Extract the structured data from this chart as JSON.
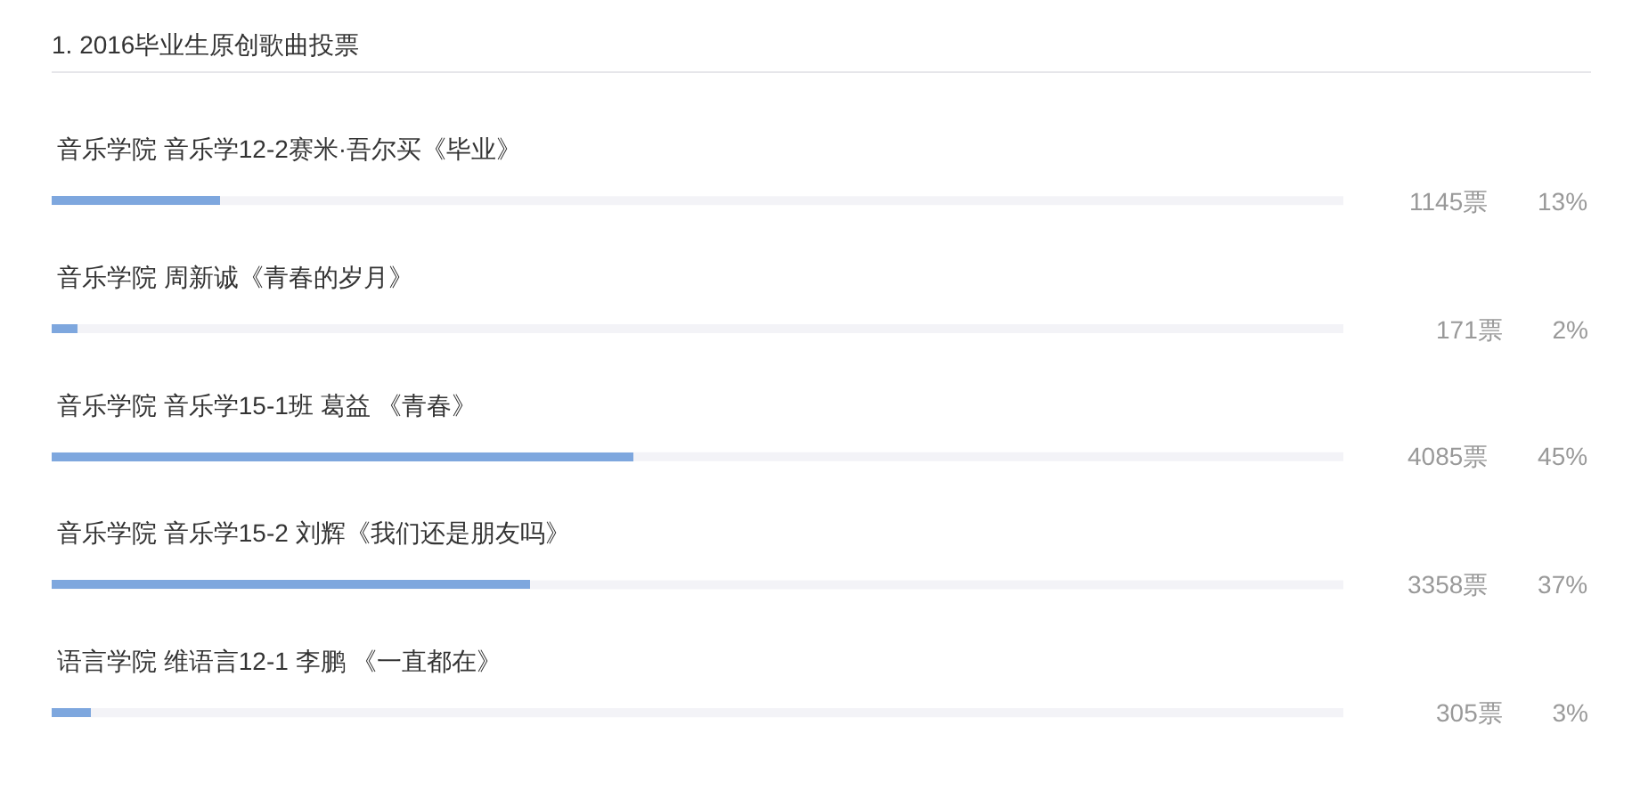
{
  "chart_data": {
    "type": "bar",
    "title": "1. 2016毕业生原创歌曲投票",
    "orientation": "horizontal",
    "categories": [
      "音乐学院 音乐学12-2赛米·吾尔买《毕业》",
      "音乐学院 周新诚《青春的岁月》",
      "音乐学院 音乐学15-1班 葛益 《青春》",
      "音乐学院 音乐学15-2 刘辉《我们还是朋友吗》",
      "语言学院 维语言12-1 李鹏 《一直都在》"
    ],
    "values": [
      13,
      2,
      45,
      37,
      3
    ],
    "color": "#7ea7de",
    "xlim": [
      0,
      100
    ],
    "value_labels": [
      "1145票 13%",
      "171票 2%",
      "4085票 45%",
      "3358票 37%",
      "305票 3%"
    ],
    "tick_labels": "y"
  }
}
